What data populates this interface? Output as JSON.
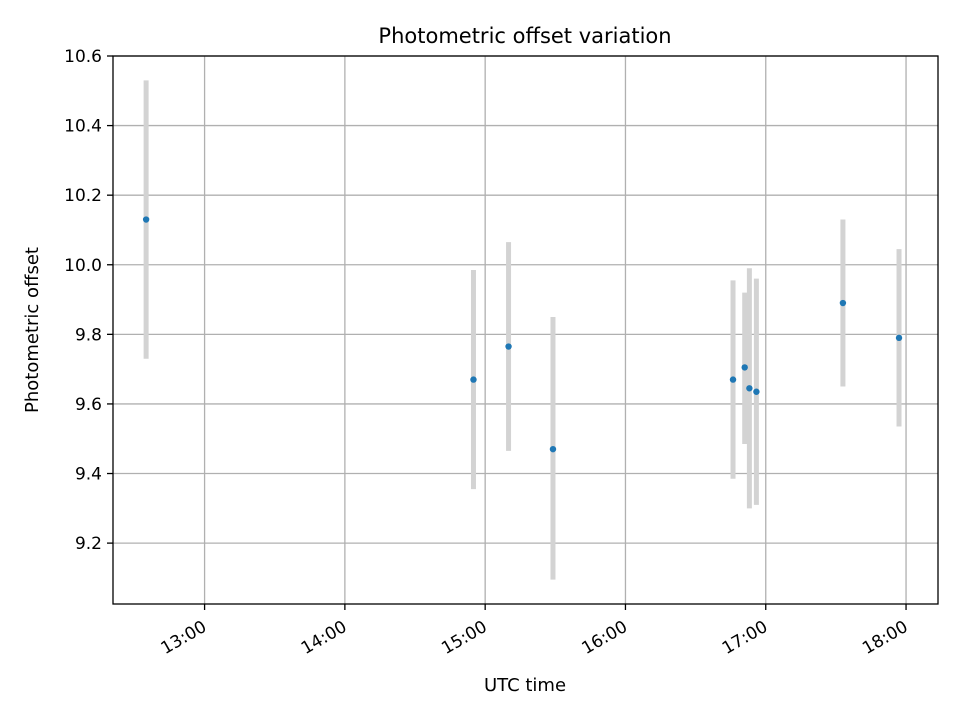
{
  "chart_data": {
    "type": "scatter",
    "title": "Photometric offset variation",
    "xlabel": "UTC time",
    "ylabel": "Photometric offset",
    "xlim": [
      "12:20:50",
      "18:13:40"
    ],
    "ylim": [
      9.025,
      10.6
    ],
    "x_ticks": [
      "13:00",
      "14:00",
      "15:00",
      "16:00",
      "17:00",
      "18:00"
    ],
    "y_ticks": [
      "9.2",
      "9.4",
      "9.6",
      "9.8",
      "10.0",
      "10.2",
      "10.4",
      "10.6"
    ],
    "grid": true,
    "marker_color": "#1f77b4",
    "errorbar_color": "#d3d3d3",
    "points": [
      {
        "time": "12:35",
        "value": 10.13,
        "err_low": 9.73,
        "err_high": 10.53
      },
      {
        "time": "14:55",
        "value": 9.67,
        "err_low": 9.355,
        "err_high": 9.985
      },
      {
        "time": "15:10",
        "value": 9.765,
        "err_low": 9.465,
        "err_high": 10.065
      },
      {
        "time": "15:29",
        "value": 9.47,
        "err_low": 9.095,
        "err_high": 9.85
      },
      {
        "time": "16:46",
        "value": 9.67,
        "err_low": 9.385,
        "err_high": 9.955
      },
      {
        "time": "16:51",
        "value": 9.705,
        "err_low": 9.485,
        "err_high": 9.92
      },
      {
        "time": "16:53",
        "value": 9.645,
        "err_low": 9.3,
        "err_high": 9.99
      },
      {
        "time": "16:56",
        "value": 9.635,
        "err_low": 9.31,
        "err_high": 9.96
      },
      {
        "time": "17:33",
        "value": 9.89,
        "err_low": 9.65,
        "err_high": 10.13
      },
      {
        "time": "17:57",
        "value": 9.79,
        "err_low": 9.535,
        "err_high": 10.045
      }
    ]
  }
}
